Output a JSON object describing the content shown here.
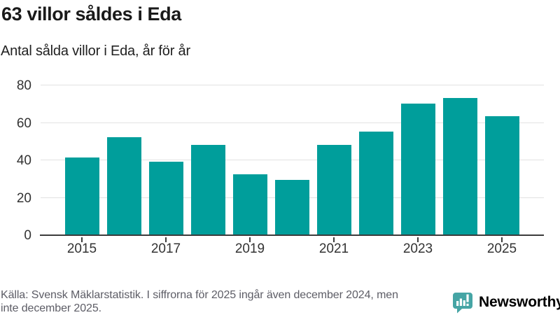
{
  "header": {
    "title": "63 villor såldes i Eda",
    "subtitle": "Antal sålda villor i Eda, år för år"
  },
  "chart_data": {
    "type": "bar",
    "categories": [
      "2015",
      "2016",
      "2017",
      "2018",
      "2019",
      "2020",
      "2021",
      "2022",
      "2023",
      "2024",
      "2025"
    ],
    "values": [
      41,
      52,
      39,
      48,
      32,
      29,
      48,
      55,
      70,
      73,
      63
    ],
    "title": "63 villor såldes i Eda",
    "subtitle": "Antal sålda villor i Eda, år för år",
    "xlabel": "",
    "ylabel": "",
    "ylim": [
      0,
      80
    ],
    "y_ticks": [
      0,
      20,
      40,
      60,
      80
    ],
    "x_tick_labels": [
      "2015",
      "2017",
      "2019",
      "2021",
      "2023",
      "2025"
    ],
    "bar_color": "#009E9B",
    "grid": true,
    "legend": "none"
  },
  "footer": {
    "source_lines": [
      "Källa: Svensk Mäklarstatistik. I siffrorna för 2025 ingår även december 2024, men",
      "inte december 2025."
    ],
    "brand": "Newsworthy",
    "brand_color": "#2E9E9E",
    "icon_color": "#46A5A5"
  }
}
